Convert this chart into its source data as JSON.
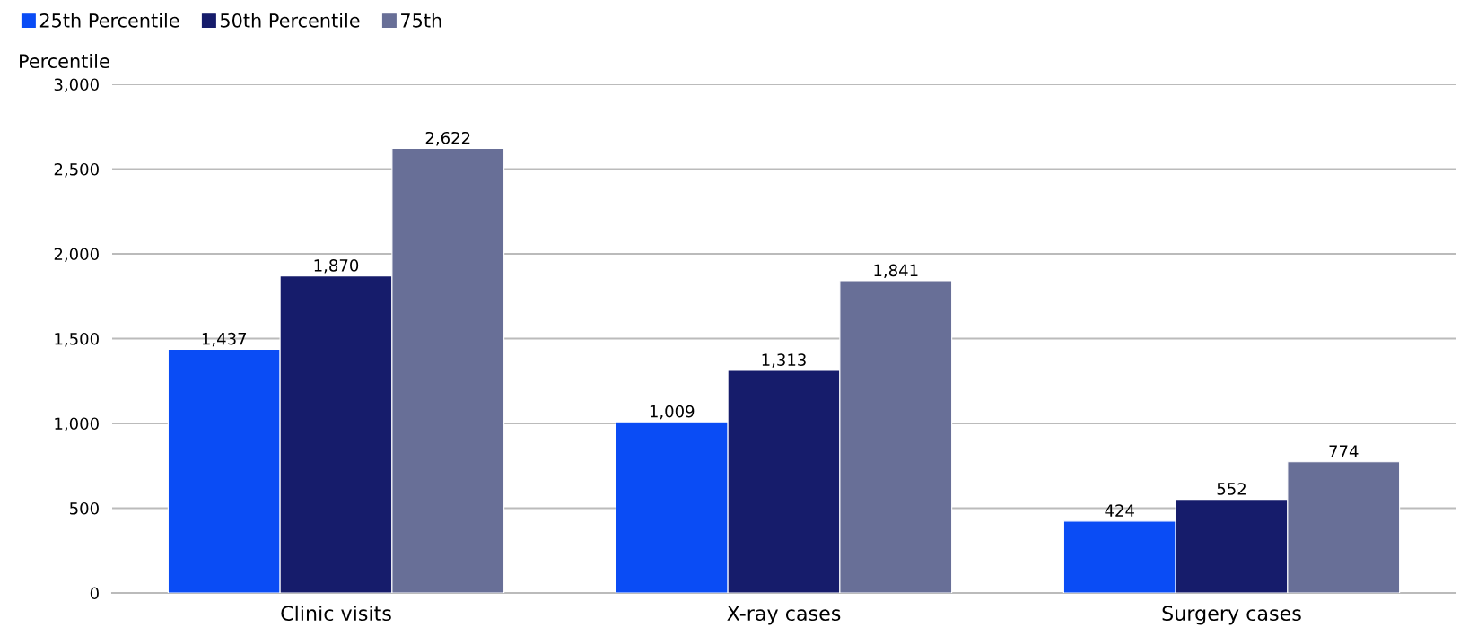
{
  "chart_data": {
    "type": "bar",
    "ylabel": "Percentile",
    "categories": [
      "Clinic visits",
      "X-ray cases",
      "Surgery cases"
    ],
    "series": [
      {
        "name": "25th Percentile",
        "color": "#0a4cf5",
        "values": [
          1437,
          1009,
          424
        ],
        "value_labels": [
          "1,437",
          "1,009",
          "424"
        ]
      },
      {
        "name": "50th Percentile",
        "color": "#161c6b",
        "values": [
          1870,
          1313,
          552
        ],
        "value_labels": [
          "1,870",
          "1,313",
          "552"
        ]
      },
      {
        "name": "75th",
        "color": "#686f97",
        "values": [
          2622,
          1841,
          774
        ],
        "value_labels": [
          "2,622",
          "1,841",
          "774"
        ]
      }
    ],
    "ylim": [
      0,
      3000
    ],
    "yticks": [
      {
        "value": 0,
        "label": "0"
      },
      {
        "value": 500,
        "label": "500"
      },
      {
        "value": 1000,
        "label": "1,000"
      },
      {
        "value": 1500,
        "label": "1,500"
      },
      {
        "value": 2000,
        "label": "2,000"
      },
      {
        "value": 2500,
        "label": "2,500"
      },
      {
        "value": 3000,
        "label": "3,000"
      }
    ],
    "grid": "y",
    "legend": "top left"
  }
}
